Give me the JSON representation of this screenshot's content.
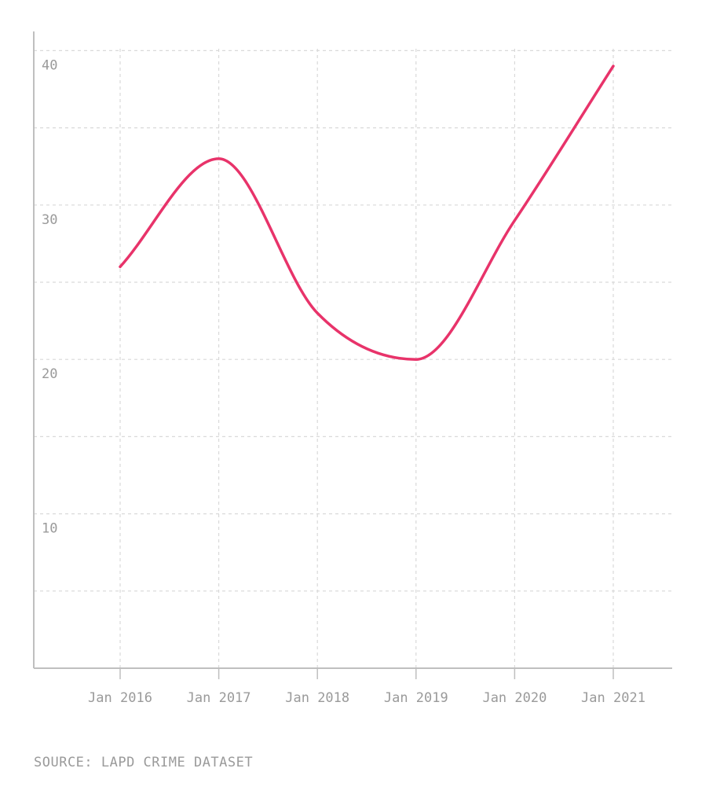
{
  "chart_data": {
    "type": "line",
    "x": [
      "Jan 2016",
      "Jan 2017",
      "Jan 2018",
      "Jan 2019",
      "Jan 2020",
      "Jan 2021"
    ],
    "series": [
      {
        "values": [
          26,
          33,
          23,
          20,
          29,
          39
        ],
        "color": "#e8336a"
      }
    ],
    "ylim": [
      0,
      40
    ],
    "yticks": [
      "10",
      "20",
      "30",
      "40"
    ],
    "grid": true,
    "title": "",
    "xlabel": "",
    "ylabel": ""
  },
  "source": "SOURCE: LAPD CRIME DATASET"
}
